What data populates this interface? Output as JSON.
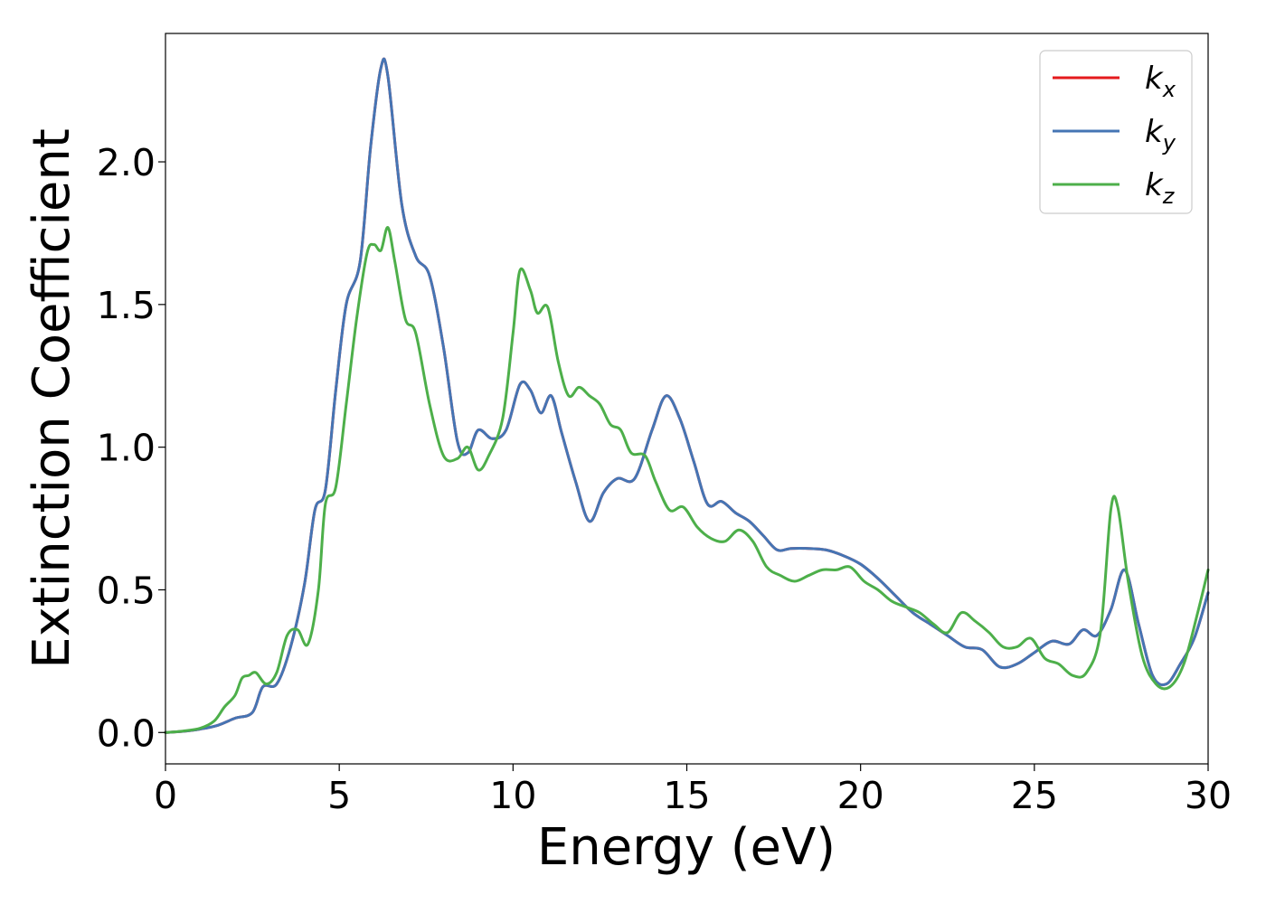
{
  "chart_data": {
    "type": "line",
    "xlabel": "Energy (eV)",
    "ylabel": "Extinction Coefficient",
    "xlim": [
      0,
      30
    ],
    "ylim": [
      -0.11,
      2.45
    ],
    "x_ticks": [
      0,
      5,
      10,
      15,
      20,
      25,
      30
    ],
    "x_tick_labels": [
      "0",
      "5",
      "10",
      "15",
      "20",
      "25",
      "30"
    ],
    "y_ticks": [
      0.0,
      0.5,
      1.0,
      1.5,
      2.0
    ],
    "y_tick_labels": [
      "0.0",
      "0.5",
      "1.0",
      "1.5",
      "2.0"
    ],
    "grid": false,
    "legend_position": "top-right",
    "series": [
      {
        "name": "k_x",
        "label_base": "k",
        "label_sub": "x",
        "color": "#e41a1c",
        "points": [
          [
            0,
            0
          ],
          [
            0.5,
            0.004
          ],
          [
            1.0,
            0.012
          ],
          [
            1.5,
            0.025
          ],
          [
            2.0,
            0.05
          ],
          [
            2.5,
            0.07
          ],
          [
            2.8,
            0.16
          ],
          [
            3.2,
            0.17
          ],
          [
            3.6,
            0.3
          ],
          [
            4.0,
            0.52
          ],
          [
            4.3,
            0.78
          ],
          [
            4.6,
            0.85
          ],
          [
            4.9,
            1.2
          ],
          [
            5.2,
            1.5
          ],
          [
            5.6,
            1.65
          ],
          [
            5.9,
            2.05
          ],
          [
            6.2,
            2.33
          ],
          [
            6.4,
            2.3
          ],
          [
            6.8,
            1.85
          ],
          [
            7.2,
            1.67
          ],
          [
            7.6,
            1.6
          ],
          [
            8.0,
            1.35
          ],
          [
            8.4,
            1.02
          ],
          [
            8.7,
            0.98
          ],
          [
            9.0,
            1.06
          ],
          [
            9.4,
            1.03
          ],
          [
            9.8,
            1.06
          ],
          [
            10.2,
            1.22
          ],
          [
            10.5,
            1.2
          ],
          [
            10.8,
            1.12
          ],
          [
            11.1,
            1.18
          ],
          [
            11.4,
            1.05
          ],
          [
            11.8,
            0.88
          ],
          [
            12.2,
            0.74
          ],
          [
            12.6,
            0.84
          ],
          [
            13.0,
            0.89
          ],
          [
            13.5,
            0.89
          ],
          [
            14.0,
            1.06
          ],
          [
            14.4,
            1.18
          ],
          [
            14.8,
            1.1
          ],
          [
            15.2,
            0.95
          ],
          [
            15.6,
            0.8
          ],
          [
            16.0,
            0.81
          ],
          [
            16.4,
            0.77
          ],
          [
            16.8,
            0.74
          ],
          [
            17.2,
            0.69
          ],
          [
            17.6,
            0.64
          ],
          [
            18.0,
            0.645
          ],
          [
            18.5,
            0.645
          ],
          [
            19.0,
            0.64
          ],
          [
            19.5,
            0.62
          ],
          [
            20.0,
            0.59
          ],
          [
            20.5,
            0.54
          ],
          [
            21.0,
            0.48
          ],
          [
            21.5,
            0.42
          ],
          [
            22.0,
            0.38
          ],
          [
            22.5,
            0.34
          ],
          [
            23.0,
            0.3
          ],
          [
            23.5,
            0.29
          ],
          [
            24.0,
            0.23
          ],
          [
            24.5,
            0.24
          ],
          [
            25.0,
            0.28
          ],
          [
            25.5,
            0.32
          ],
          [
            26.0,
            0.31
          ],
          [
            26.4,
            0.36
          ],
          [
            26.8,
            0.34
          ],
          [
            27.2,
            0.43
          ],
          [
            27.6,
            0.57
          ],
          [
            28.0,
            0.38
          ],
          [
            28.4,
            0.2
          ],
          [
            28.8,
            0.17
          ],
          [
            29.2,
            0.24
          ],
          [
            29.6,
            0.33
          ],
          [
            30.0,
            0.49
          ]
        ]
      },
      {
        "name": "k_y",
        "label_base": "k",
        "label_sub": "y",
        "color": "#4575b4",
        "points": [
          [
            0,
            0
          ],
          [
            0.5,
            0.004
          ],
          [
            1.0,
            0.012
          ],
          [
            1.5,
            0.025
          ],
          [
            2.0,
            0.05
          ],
          [
            2.5,
            0.07
          ],
          [
            2.8,
            0.16
          ],
          [
            3.2,
            0.17
          ],
          [
            3.6,
            0.3
          ],
          [
            4.0,
            0.52
          ],
          [
            4.3,
            0.78
          ],
          [
            4.6,
            0.85
          ],
          [
            4.9,
            1.2
          ],
          [
            5.2,
            1.5
          ],
          [
            5.6,
            1.65
          ],
          [
            5.9,
            2.05
          ],
          [
            6.2,
            2.33
          ],
          [
            6.4,
            2.3
          ],
          [
            6.8,
            1.85
          ],
          [
            7.2,
            1.67
          ],
          [
            7.6,
            1.6
          ],
          [
            8.0,
            1.35
          ],
          [
            8.4,
            1.02
          ],
          [
            8.7,
            0.98
          ],
          [
            9.0,
            1.06
          ],
          [
            9.4,
            1.03
          ],
          [
            9.8,
            1.06
          ],
          [
            10.2,
            1.22
          ],
          [
            10.5,
            1.2
          ],
          [
            10.8,
            1.12
          ],
          [
            11.1,
            1.18
          ],
          [
            11.4,
            1.05
          ],
          [
            11.8,
            0.88
          ],
          [
            12.2,
            0.74
          ],
          [
            12.6,
            0.84
          ],
          [
            13.0,
            0.89
          ],
          [
            13.5,
            0.89
          ],
          [
            14.0,
            1.06
          ],
          [
            14.4,
            1.18
          ],
          [
            14.8,
            1.1
          ],
          [
            15.2,
            0.95
          ],
          [
            15.6,
            0.8
          ],
          [
            16.0,
            0.81
          ],
          [
            16.4,
            0.77
          ],
          [
            16.8,
            0.74
          ],
          [
            17.2,
            0.69
          ],
          [
            17.6,
            0.64
          ],
          [
            18.0,
            0.645
          ],
          [
            18.5,
            0.645
          ],
          [
            19.0,
            0.64
          ],
          [
            19.5,
            0.62
          ],
          [
            20.0,
            0.59
          ],
          [
            20.5,
            0.54
          ],
          [
            21.0,
            0.48
          ],
          [
            21.5,
            0.42
          ],
          [
            22.0,
            0.38
          ],
          [
            22.5,
            0.34
          ],
          [
            23.0,
            0.3
          ],
          [
            23.5,
            0.29
          ],
          [
            24.0,
            0.23
          ],
          [
            24.5,
            0.24
          ],
          [
            25.0,
            0.28
          ],
          [
            25.5,
            0.32
          ],
          [
            26.0,
            0.31
          ],
          [
            26.4,
            0.36
          ],
          [
            26.8,
            0.34
          ],
          [
            27.2,
            0.43
          ],
          [
            27.6,
            0.57
          ],
          [
            28.0,
            0.38
          ],
          [
            28.4,
            0.2
          ],
          [
            28.8,
            0.17
          ],
          [
            29.2,
            0.24
          ],
          [
            29.6,
            0.33
          ],
          [
            30.0,
            0.49
          ]
        ]
      },
      {
        "name": "k_z",
        "label_base": "k",
        "label_sub": "z",
        "color": "#4daf4a",
        "points": [
          [
            0,
            0
          ],
          [
            0.5,
            0.005
          ],
          [
            1.0,
            0.015
          ],
          [
            1.4,
            0.04
          ],
          [
            1.7,
            0.09
          ],
          [
            2.0,
            0.13
          ],
          [
            2.2,
            0.19
          ],
          [
            2.4,
            0.2
          ],
          [
            2.6,
            0.21
          ],
          [
            2.9,
            0.17
          ],
          [
            3.2,
            0.21
          ],
          [
            3.5,
            0.34
          ],
          [
            3.8,
            0.36
          ],
          [
            4.1,
            0.31
          ],
          [
            4.4,
            0.5
          ],
          [
            4.6,
            0.8
          ],
          [
            4.9,
            0.86
          ],
          [
            5.2,
            1.15
          ],
          [
            5.5,
            1.45
          ],
          [
            5.8,
            1.68
          ],
          [
            6.0,
            1.71
          ],
          [
            6.2,
            1.69
          ],
          [
            6.4,
            1.77
          ],
          [
            6.6,
            1.65
          ],
          [
            6.9,
            1.45
          ],
          [
            7.2,
            1.4
          ],
          [
            7.6,
            1.15
          ],
          [
            8.0,
            0.97
          ],
          [
            8.4,
            0.96
          ],
          [
            8.7,
            1.0
          ],
          [
            9.0,
            0.92
          ],
          [
            9.3,
            0.97
          ],
          [
            9.7,
            1.1
          ],
          [
            10.0,
            1.4
          ],
          [
            10.2,
            1.62
          ],
          [
            10.5,
            1.55
          ],
          [
            10.7,
            1.47
          ],
          [
            11.0,
            1.49
          ],
          [
            11.3,
            1.3
          ],
          [
            11.6,
            1.18
          ],
          [
            11.9,
            1.21
          ],
          [
            12.2,
            1.18
          ],
          [
            12.5,
            1.15
          ],
          [
            12.8,
            1.08
          ],
          [
            13.1,
            1.06
          ],
          [
            13.4,
            0.98
          ],
          [
            13.8,
            0.97
          ],
          [
            14.1,
            0.88
          ],
          [
            14.5,
            0.78
          ],
          [
            14.9,
            0.79
          ],
          [
            15.3,
            0.72
          ],
          [
            15.7,
            0.68
          ],
          [
            16.1,
            0.67
          ],
          [
            16.5,
            0.71
          ],
          [
            16.9,
            0.67
          ],
          [
            17.3,
            0.58
          ],
          [
            17.7,
            0.55
          ],
          [
            18.1,
            0.53
          ],
          [
            18.5,
            0.55
          ],
          [
            18.9,
            0.57
          ],
          [
            19.3,
            0.57
          ],
          [
            19.7,
            0.58
          ],
          [
            20.1,
            0.53
          ],
          [
            20.5,
            0.5
          ],
          [
            20.9,
            0.46
          ],
          [
            21.3,
            0.44
          ],
          [
            21.7,
            0.42
          ],
          [
            22.1,
            0.38
          ],
          [
            22.5,
            0.35
          ],
          [
            22.9,
            0.42
          ],
          [
            23.3,
            0.39
          ],
          [
            23.7,
            0.35
          ],
          [
            24.1,
            0.3
          ],
          [
            24.5,
            0.3
          ],
          [
            24.9,
            0.33
          ],
          [
            25.3,
            0.26
          ],
          [
            25.7,
            0.24
          ],
          [
            26.1,
            0.2
          ],
          [
            26.5,
            0.21
          ],
          [
            26.9,
            0.35
          ],
          [
            27.2,
            0.78
          ],
          [
            27.4,
            0.79
          ],
          [
            27.7,
            0.53
          ],
          [
            28.1,
            0.27
          ],
          [
            28.5,
            0.17
          ],
          [
            28.9,
            0.16
          ],
          [
            29.3,
            0.24
          ],
          [
            29.7,
            0.42
          ],
          [
            30.0,
            0.57
          ]
        ]
      }
    ]
  }
}
